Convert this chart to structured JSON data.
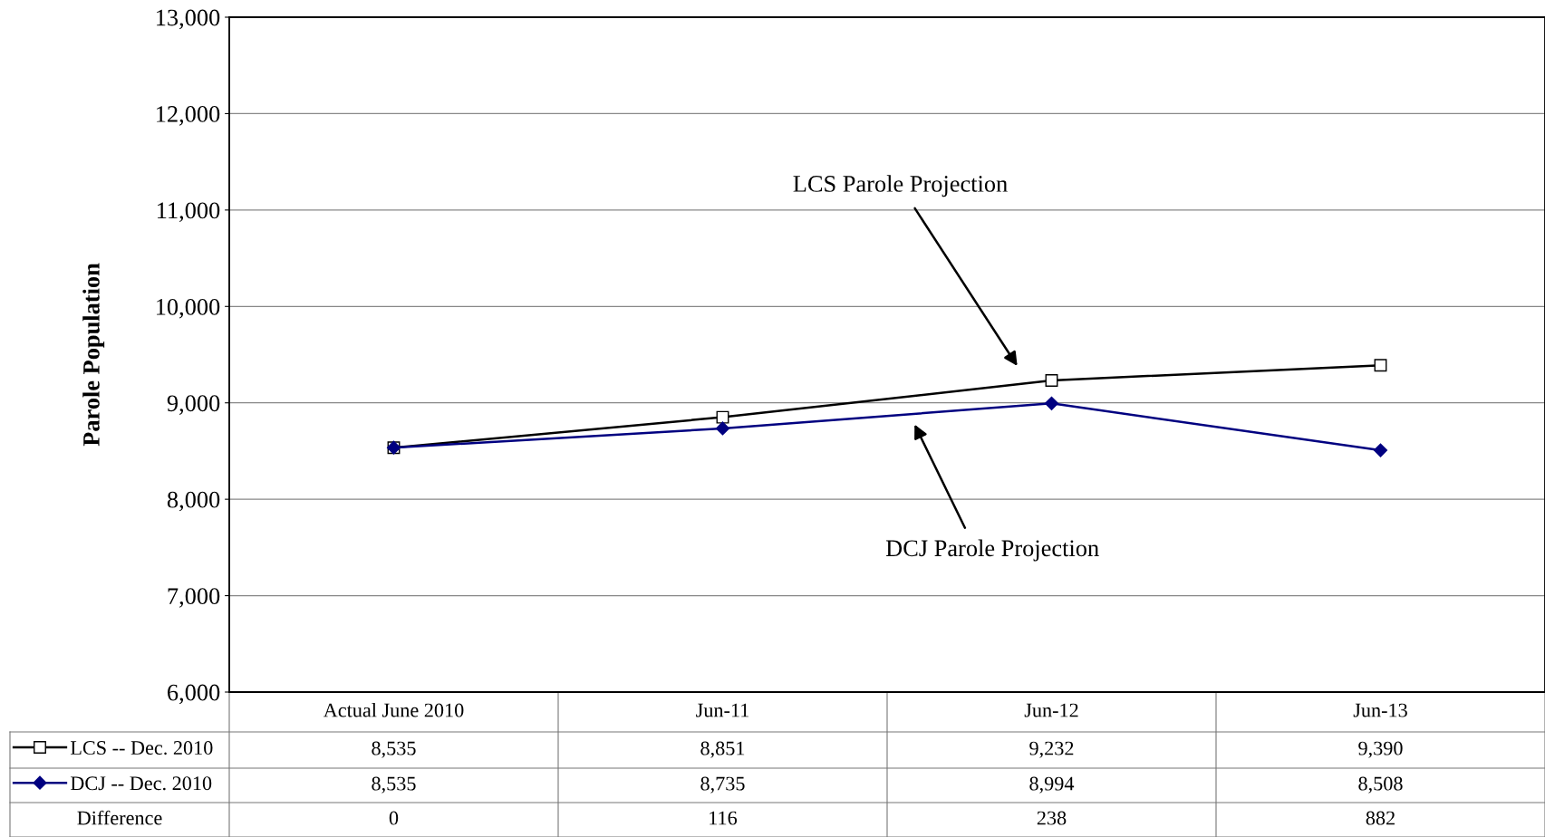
{
  "chart_data": {
    "type": "line",
    "ylabel": "Parole Population",
    "categories": [
      "Actual June 2010",
      "Jun-11",
      "Jun-12",
      "Jun-13"
    ],
    "series": [
      {
        "name": "LCS -- Dec. 2010",
        "color": "#000000",
        "marker": "square",
        "values": [
          8535,
          8851,
          9232,
          9390
        ],
        "value_labels": [
          "8,535",
          "8,851",
          "9,232",
          "9,390"
        ]
      },
      {
        "name": "DCJ -- Dec. 2010",
        "color": "#000080",
        "marker": "diamond",
        "values": [
          8535,
          8735,
          8994,
          8508
        ],
        "value_labels": [
          "8,535",
          "8,735",
          "8,994",
          "8,508"
        ]
      }
    ],
    "ylim": [
      6000,
      13000
    ],
    "yticks": [
      {
        "value": 6000,
        "label": "6,000"
      },
      {
        "value": 7000,
        "label": "7,000"
      },
      {
        "value": 8000,
        "label": "8,000"
      },
      {
        "value": 9000,
        "label": "9,000"
      },
      {
        "value": 10000,
        "label": "10,000"
      },
      {
        "value": 11000,
        "label": "11,000"
      },
      {
        "value": 12000,
        "label": "12,000"
      },
      {
        "value": 13000,
        "label": "13,000"
      }
    ],
    "grid": "y",
    "legend": "bottom left",
    "annotations": [
      "LCS Parole Projection",
      "DCJ Parole Projection",
      "Difference",
      "0",
      "116",
      "238",
      "882"
    ]
  }
}
